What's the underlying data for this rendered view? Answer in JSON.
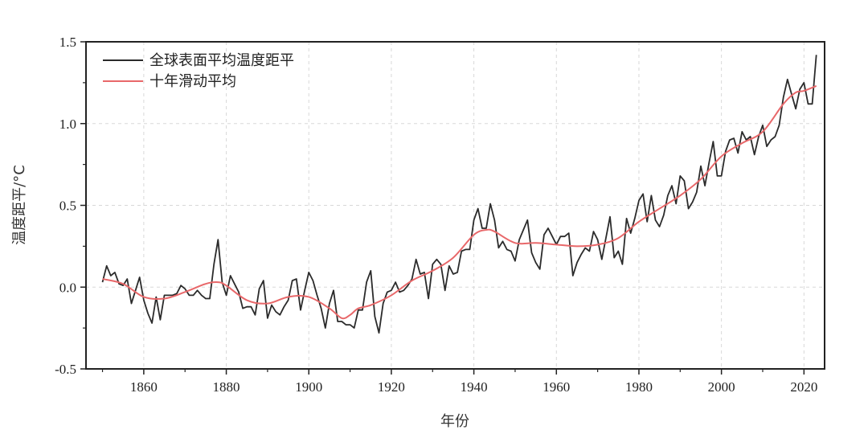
{
  "chart_data": {
    "type": "line",
    "title": "",
    "xlabel": "年份",
    "ylabel": "温度距平/°C",
    "xlim": [
      1846,
      2025
    ],
    "ylim": [
      -0.5,
      1.5
    ],
    "xticks": [
      1860,
      1880,
      1900,
      1920,
      1940,
      1960,
      1980,
      2000,
      2020
    ],
    "yticks": [
      -0.5,
      0.0,
      0.5,
      1.0,
      1.5
    ],
    "ytick_labels": [
      "-0.5",
      "0.0",
      "0.5",
      "1.0",
      "1.5"
    ],
    "grid": true,
    "legend_position": "top-left",
    "series": [
      {
        "name": "全球表面平均温度距平",
        "color": "#2b2b2b",
        "x_start": 1850,
        "values": [
          0.03,
          0.13,
          0.07,
          0.09,
          0.02,
          0.01,
          0.05,
          -0.1,
          -0.02,
          0.06,
          -0.08,
          -0.16,
          -0.22,
          -0.06,
          -0.2,
          -0.05,
          -0.05,
          -0.05,
          -0.04,
          0.01,
          -0.01,
          -0.05,
          -0.05,
          -0.02,
          -0.05,
          -0.07,
          -0.07,
          0.14,
          0.29,
          0.03,
          -0.05,
          0.07,
          0.02,
          -0.03,
          -0.13,
          -0.12,
          -0.12,
          -0.17,
          -0.01,
          0.04,
          -0.19,
          -0.11,
          -0.15,
          -0.17,
          -0.12,
          -0.08,
          0.04,
          0.05,
          -0.14,
          -0.02,
          0.09,
          0.04,
          -0.05,
          -0.13,
          -0.25,
          -0.1,
          -0.02,
          -0.21,
          -0.21,
          -0.23,
          -0.23,
          -0.25,
          -0.14,
          -0.14,
          0.03,
          0.1,
          -0.18,
          -0.28,
          -0.1,
          -0.03,
          -0.02,
          0.03,
          -0.03,
          -0.02,
          0.01,
          0.05,
          0.17,
          0.08,
          0.09,
          -0.07,
          0.14,
          0.17,
          0.14,
          -0.02,
          0.13,
          0.08,
          0.09,
          0.22,
          0.23,
          0.23,
          0.41,
          0.48,
          0.36,
          0.36,
          0.51,
          0.41,
          0.24,
          0.28,
          0.23,
          0.22,
          0.16,
          0.29,
          0.35,
          0.41,
          0.21,
          0.15,
          0.11,
          0.32,
          0.36,
          0.31,
          0.26,
          0.31,
          0.31,
          0.33,
          0.07,
          0.15,
          0.2,
          0.24,
          0.22,
          0.34,
          0.29,
          0.17,
          0.3,
          0.43,
          0.18,
          0.22,
          0.14,
          0.42,
          0.33,
          0.42,
          0.53,
          0.57,
          0.4,
          0.56,
          0.41,
          0.37,
          0.44,
          0.56,
          0.62,
          0.51,
          0.68,
          0.65,
          0.48,
          0.52,
          0.58,
          0.74,
          0.62,
          0.76,
          0.89,
          0.68,
          0.68,
          0.83,
          0.9,
          0.91,
          0.82,
          0.95,
          0.9,
          0.92,
          0.81,
          0.92,
          0.99,
          0.86,
          0.9,
          0.92,
          0.99,
          1.16,
          1.27,
          1.18,
          1.09,
          1.21,
          1.25,
          1.12,
          1.12,
          1.42
        ]
      },
      {
        "name": "十年滑动平均",
        "color": "#e8686a",
        "x": [
          1850,
          1855,
          1860,
          1865,
          1870,
          1875,
          1878,
          1880,
          1885,
          1890,
          1895,
          1900,
          1905,
          1908,
          1910,
          1912,
          1915,
          1920,
          1925,
          1930,
          1935,
          1940,
          1943,
          1945,
          1950,
          1955,
          1960,
          1965,
          1970,
          1975,
          1980,
          1985,
          1990,
          1995,
          2000,
          2005,
          2010,
          2015,
          2018,
          2020,
          2023
        ],
        "values": [
          0.05,
          0.02,
          -0.06,
          -0.07,
          -0.03,
          0.02,
          0.03,
          0.01,
          -0.08,
          -0.1,
          -0.06,
          -0.06,
          -0.13,
          -0.19,
          -0.17,
          -0.13,
          -0.11,
          -0.05,
          0.04,
          0.1,
          0.18,
          0.32,
          0.35,
          0.34,
          0.27,
          0.27,
          0.26,
          0.25,
          0.26,
          0.3,
          0.4,
          0.48,
          0.56,
          0.66,
          0.8,
          0.88,
          0.95,
          1.12,
          1.19,
          1.2,
          1.23
        ]
      }
    ]
  }
}
